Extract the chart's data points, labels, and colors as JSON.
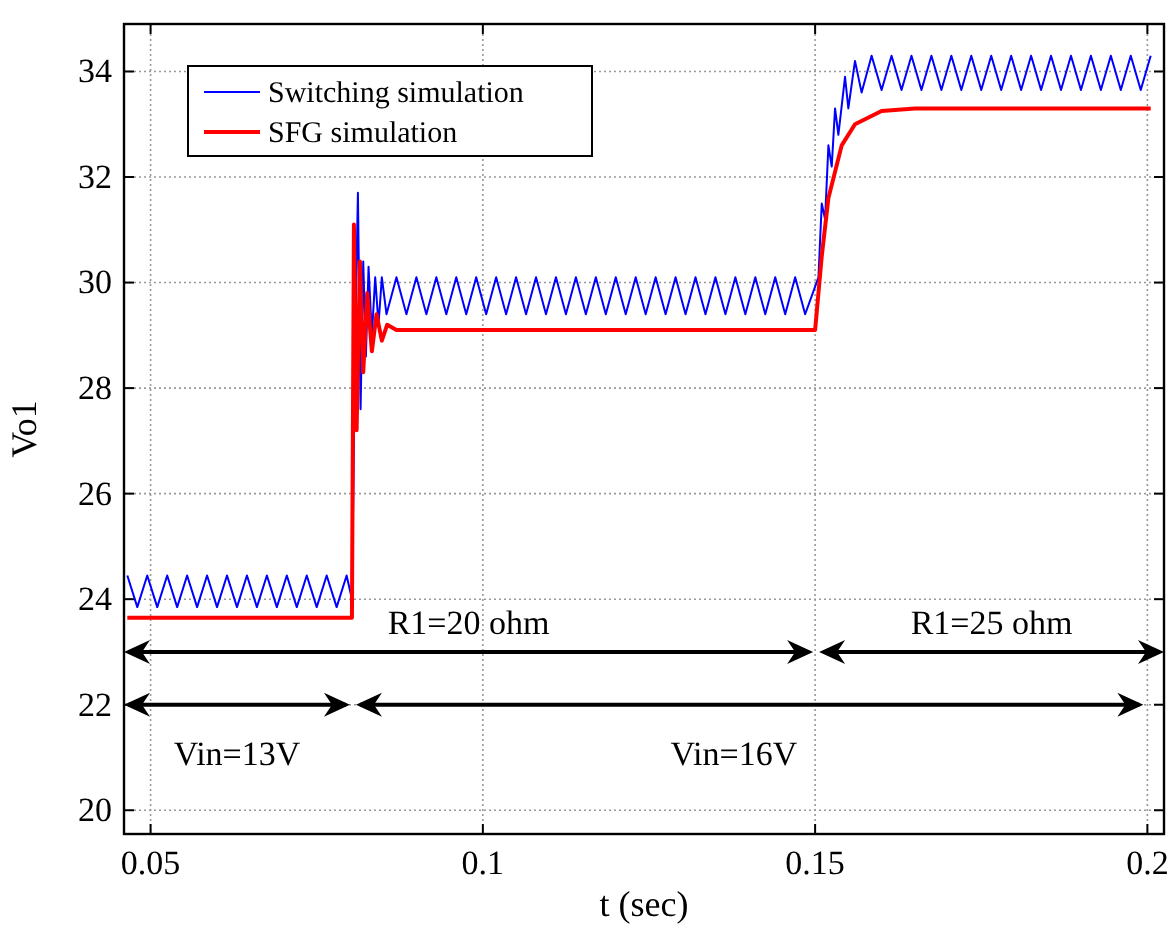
{
  "chart_data": {
    "type": "line",
    "xlabel": "t (sec)",
    "ylabel": "Vo1",
    "xlim": [
      0.046,
      0.2025
    ],
    "xticks": [
      0.05,
      0.1,
      0.15,
      0.2
    ],
    "ylim": [
      19.55,
      34.9
    ],
    "yticks": [
      20,
      22,
      24,
      26,
      28,
      30,
      32,
      34
    ],
    "grid": true,
    "legend": "top left",
    "line_style": "solid",
    "series": [
      {
        "name": "Switching simulation",
        "color": "#0000ff",
        "x": [
          0.0465,
          0.048,
          0.0495,
          0.051,
          0.0525,
          0.054,
          0.0555,
          0.057,
          0.0585,
          0.06,
          0.0615,
          0.063,
          0.0645,
          0.066,
          0.0675,
          0.069,
          0.0705,
          0.072,
          0.0735,
          0.075,
          0.0765,
          0.078,
          0.0795,
          0.0803,
          0.0808,
          0.0812,
          0.0816,
          0.082,
          0.0824,
          0.0828,
          0.0833,
          0.0838,
          0.0843,
          0.0848,
          0.0855,
          0.087,
          0.0885,
          0.09,
          0.0915,
          0.093,
          0.0945,
          0.096,
          0.0975,
          0.099,
          0.1005,
          0.102,
          0.1035,
          0.105,
          0.1065,
          0.108,
          0.1095,
          0.111,
          0.1125,
          0.114,
          0.1155,
          0.117,
          0.1185,
          0.12,
          0.1215,
          0.123,
          0.1245,
          0.126,
          0.1275,
          0.129,
          0.1305,
          0.132,
          0.1335,
          0.135,
          0.1365,
          0.138,
          0.1395,
          0.141,
          0.1425,
          0.144,
          0.1455,
          0.147,
          0.1485,
          0.1505,
          0.151,
          0.1515,
          0.152,
          0.1525,
          0.153,
          0.1535,
          0.1545,
          0.155,
          0.156,
          0.157,
          0.1585,
          0.16,
          0.1615,
          0.163,
          0.1645,
          0.166,
          0.1675,
          0.169,
          0.1705,
          0.172,
          0.1735,
          0.175,
          0.1765,
          0.178,
          0.1795,
          0.181,
          0.1825,
          0.184,
          0.1855,
          0.187,
          0.1885,
          0.19,
          0.1915,
          0.193,
          0.1945,
          0.196,
          0.1975,
          0.199,
          0.2005
        ],
        "values": [
          24.45,
          23.85,
          24.45,
          23.85,
          24.45,
          23.85,
          24.45,
          23.85,
          24.45,
          23.85,
          24.45,
          23.85,
          24.45,
          23.85,
          24.45,
          23.85,
          24.45,
          23.85,
          24.45,
          23.85,
          24.45,
          23.85,
          24.45,
          24.0,
          29.0,
          31.7,
          27.6,
          30.4,
          28.6,
          30.3,
          29.0,
          30.1,
          29.2,
          30.1,
          29.4,
          30.1,
          29.4,
          30.1,
          29.4,
          30.1,
          29.4,
          30.1,
          29.4,
          30.1,
          29.4,
          30.1,
          29.4,
          30.1,
          29.4,
          30.1,
          29.4,
          30.1,
          29.4,
          30.1,
          29.4,
          30.1,
          29.4,
          30.1,
          29.4,
          30.1,
          29.4,
          30.1,
          29.4,
          30.1,
          29.4,
          30.1,
          29.4,
          30.1,
          29.4,
          30.1,
          29.4,
          30.1,
          29.4,
          30.1,
          29.4,
          30.1,
          29.4,
          30.1,
          31.5,
          31.2,
          32.6,
          32.2,
          33.3,
          32.8,
          33.9,
          33.3,
          34.2,
          33.6,
          34.3,
          33.65,
          34.3,
          33.65,
          34.3,
          33.65,
          34.3,
          33.65,
          34.3,
          33.65,
          34.3,
          33.65,
          34.3,
          33.65,
          34.3,
          33.65,
          34.3,
          33.65,
          34.3,
          33.65,
          34.3,
          33.65,
          34.3,
          33.65,
          34.3,
          33.65,
          34.3,
          33.65,
          34.3
        ]
      },
      {
        "name": "SFG simulation",
        "color": "#ff0000",
        "x": [
          0.0465,
          0.0803,
          0.0806,
          0.081,
          0.0815,
          0.082,
          0.0826,
          0.0833,
          0.084,
          0.0848,
          0.0856,
          0.087,
          0.15,
          0.151,
          0.152,
          0.154,
          0.156,
          0.16,
          0.165,
          0.2005
        ],
        "values": [
          23.65,
          23.65,
          31.1,
          27.2,
          30.4,
          28.3,
          29.8,
          28.7,
          29.4,
          28.9,
          29.2,
          29.1,
          29.1,
          30.5,
          31.6,
          32.6,
          33.0,
          33.25,
          33.3,
          33.3
        ]
      }
    ],
    "annotations": [
      "R1=20 ohm",
      "R1=25 ohm",
      "Vin=13V",
      "Vin=16V"
    ]
  }
}
